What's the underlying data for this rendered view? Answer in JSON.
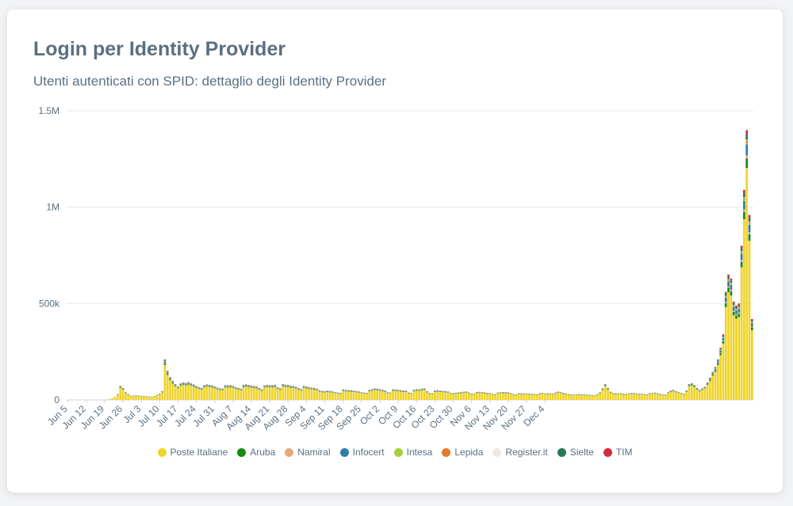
{
  "header": {
    "title": "Login per Identity Provider",
    "subtitle": "Utenti autenticati con SPID: dettaglio degli Identity Provider"
  },
  "chart_data": {
    "type": "bar",
    "stacked": true,
    "title": "Login per Identity Provider",
    "subtitle": "Utenti autenticati con SPID: dettaglio degli Identity Provider",
    "xlabel": "",
    "ylabel": "",
    "ylim": [
      0,
      1500000
    ],
    "y_ticks": [
      0,
      500000,
      1000000,
      1500000
    ],
    "y_tick_labels": [
      "0",
      "500k",
      "1M",
      "1.5M"
    ],
    "x_tick_labels": [
      "Jun 5",
      "Jun 12",
      "Jun 19",
      "Jun 26",
      "Jul 3",
      "Jul 10",
      "Jul 17",
      "Jul 24",
      "Jul 31",
      "Aug 7",
      "Aug 14",
      "Aug 21",
      "Aug 28",
      "Sep 4",
      "Sep 11",
      "Sep 18",
      "Sep 25",
      "Oct 2",
      "Oct 9",
      "Oct 16",
      "Oct 23",
      "Oct 30",
      "Nov 6",
      "Nov 13",
      "Nov 20",
      "Nov 27",
      "Dec 4"
    ],
    "x_start": "2020-06-05",
    "interval": "day",
    "grid": "horizontal",
    "legend_position": "bottom-center",
    "series": [
      {
        "name": "Poste Italiane",
        "color": "#f0d429"
      },
      {
        "name": "Aruba",
        "color": "#138a12"
      },
      {
        "name": "Namiral",
        "color": "#e3ac7c"
      },
      {
        "name": "Infocert",
        "color": "#2e7ba8"
      },
      {
        "name": "Intesa",
        "color": "#a4cf39"
      },
      {
        "name": "Lepida",
        "color": "#e27a2a"
      },
      {
        "name": "Register.it",
        "color": "#efe8e0"
      },
      {
        "name": "Sielte",
        "color": "#28795a"
      },
      {
        "name": "TIM",
        "color": "#d72b3a"
      }
    ],
    "series_share": [
      0.86,
      0.035,
      0.012,
      0.04,
      0.006,
      0.008,
      0.003,
      0.02,
      0.016
    ],
    "totals": [
      0,
      0,
      0,
      0,
      0,
      0,
      0,
      0,
      0,
      0,
      0,
      0,
      0,
      0,
      0,
      0,
      4000,
      8000,
      15000,
      30000,
      72000,
      62000,
      40000,
      30000,
      22000,
      22000,
      24000,
      22000,
      21000,
      20000,
      19000,
      17000,
      16000,
      20000,
      26000,
      33000,
      45000,
      210000,
      150000,
      118000,
      98000,
      82000,
      70000,
      85000,
      90000,
      88000,
      92000,
      86000,
      80000,
      72000,
      66000,
      62000,
      76000,
      80000,
      77000,
      75000,
      70000,
      64000,
      60000,
      58000,
      76000,
      75000,
      76000,
      72000,
      66000,
      62000,
      58000,
      78000,
      80000,
      77000,
      74000,
      72000,
      70000,
      62000,
      55000,
      75000,
      77000,
      76000,
      76000,
      78000,
      66000,
      60000,
      82000,
      79000,
      77000,
      74000,
      72000,
      68000,
      62000,
      56000,
      72000,
      70000,
      66000,
      64000,
      62000,
      58000,
      50000,
      46000,
      45000,
      48000,
      46000,
      44000,
      40000,
      38000,
      36000,
      54000,
      52000,
      50000,
      50000,
      48000,
      46000,
      44000,
      40000,
      38000,
      36000,
      52000,
      55000,
      60000,
      58000,
      56000,
      52000,
      48000,
      40000,
      38000,
      55000,
      54000,
      52000,
      50000,
      48000,
      48000,
      38000,
      36000,
      52000,
      55000,
      54000,
      58000,
      60000,
      45000,
      36000,
      35000,
      48000,
      50000,
      48000,
      47000,
      46000,
      44000,
      36000,
      35000,
      37000,
      39000,
      40000,
      42000,
      44000,
      38000,
      33000,
      32000,
      41000,
      42000,
      40000,
      39000,
      37000,
      35000,
      31000,
      30000,
      38000,
      39000,
      41000,
      40000,
      39000,
      35000,
      30000,
      28000,
      34000,
      34000,
      33000,
      33000,
      32000,
      31000,
      30000,
      29000,
      35000,
      36000,
      33000,
      34000,
      33000,
      32000,
      38000,
      43000,
      40000,
      37000,
      33000,
      30000,
      28000,
      27000,
      29000,
      30000,
      29000,
      28000,
      27000,
      26000,
      25000,
      24000,
      30000,
      40000,
      60000,
      82000,
      62000,
      42000,
      36000,
      34000,
      33000,
      34000,
      32000,
      31000,
      34000,
      36000,
      35000,
      33000,
      32000,
      31000,
      30000,
      29000,
      35000,
      36000,
      38000,
      34000,
      30000,
      28000,
      28000,
      40000,
      48000,
      52000,
      45000,
      40000,
      36000,
      32000,
      48000,
      82000,
      86000,
      78000,
      62000,
      52000,
      60000,
      68000,
      90000,
      115000,
      145000,
      170000,
      210000,
      270000,
      340000,
      560000,
      650000,
      630000,
      510000,
      490000,
      500000,
      800000,
      1090000,
      1400000,
      960000,
      420000
    ]
  },
  "colors": {
    "title": "#5c6f82",
    "grid": "#e6e9f2",
    "axis_text": "#5c6f82"
  }
}
